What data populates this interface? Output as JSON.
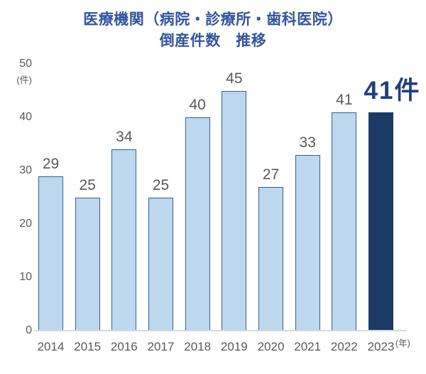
{
  "title": {
    "line1": "医療機関（病院・診療所・歯科医院）",
    "line2": "倒産件数　推移"
  },
  "chart_data": {
    "type": "bar",
    "title": "医療機関（病院・診療所・歯科医院）倒産件数 推移",
    "categories": [
      "2014",
      "2015",
      "2016",
      "2017",
      "2018",
      "2019",
      "2020",
      "2021",
      "2022",
      "2023"
    ],
    "values": [
      29,
      25,
      34,
      25,
      40,
      45,
      27,
      33,
      41,
      41
    ],
    "highlight_index": 9,
    "highlight_label": "41件",
    "unit_label_y": "(件)",
    "unit_label_x": "(年)",
    "xlabel": "",
    "ylabel": "件",
    "ylim": [
      0,
      50
    ],
    "yticks": [
      0,
      10,
      20,
      30,
      40,
      50
    ],
    "grid": false,
    "legend": "none",
    "colors": {
      "bar_fill": "#bdd7ee",
      "bar_border": "#365f91",
      "highlight_fill": "#1c3a66",
      "highlight_text": "#203f7e",
      "title": "#33549e",
      "label": "#595959",
      "axis_line": "#d9d9d9"
    }
  }
}
